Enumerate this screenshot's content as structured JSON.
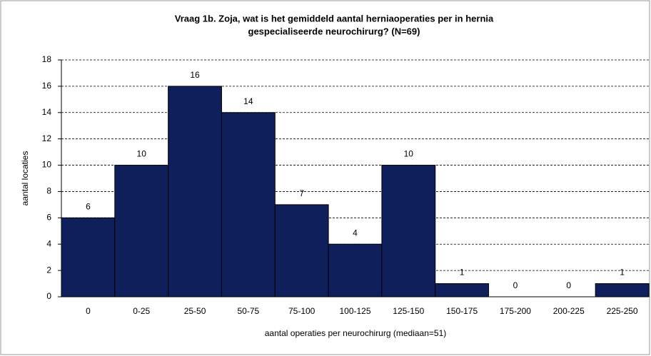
{
  "chart_data": {
    "type": "bar",
    "title": [
      "Vraag 1b. Zoja, wat is het gemiddeld aantal herniaoperaties  per in hernia",
      "gespecialiseerde neurochirurg? (N=69)"
    ],
    "xlabel": "aantal operaties per neurochirurg (mediaan=51)",
    "ylabel": "aantal locaties",
    "categories": [
      "0",
      "0-25",
      "25-50",
      "50-75",
      "75-100",
      "100-125",
      "125-150",
      "150-175",
      "175-200",
      "200-225",
      "225-250"
    ],
    "values": [
      6,
      10,
      16,
      14,
      7,
      4,
      10,
      1,
      0,
      0,
      1
    ],
    "color": "#0f1f5c",
    "ylim": [
      0,
      18
    ],
    "yticks": [
      0,
      2,
      4,
      6,
      8,
      10,
      12,
      14,
      16,
      18
    ],
    "grid": true
  }
}
